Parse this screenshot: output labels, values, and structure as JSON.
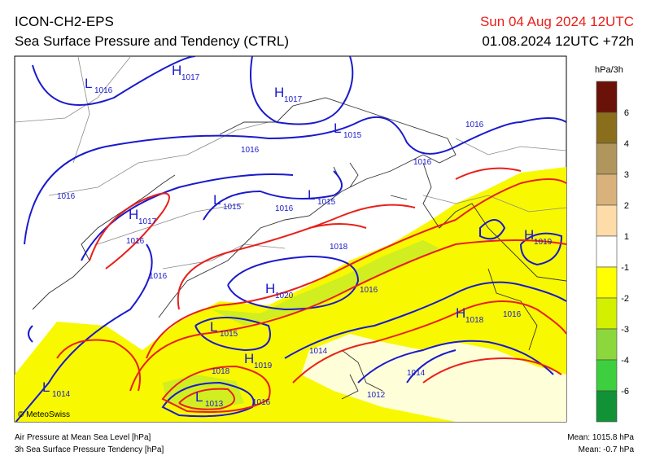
{
  "header": {
    "model": "ICON-CH2-EPS",
    "product": "Sea Surface Pressure and Tendency (CTRL)",
    "valid_time": "Sun 04 Aug 2024 12UTC",
    "run_time": "01.08.2024 12UTC +72h"
  },
  "legend": {
    "unit": "hPa/3h",
    "labels": [
      "6",
      "4",
      "3",
      "2",
      "1",
      "-1",
      "-2",
      "-3",
      "-4",
      "-6"
    ],
    "colors": [
      "#6b1208",
      "#8a6e1c",
      "#b0965c",
      "#d8b27a",
      "#fddcaa",
      "#ffffff",
      "#ffff00",
      "#d2f000",
      "#8cd83c",
      "#3ecf3e",
      "#129236"
    ]
  },
  "map": {
    "centers": [
      {
        "letter": "L",
        "value": "1016"
      },
      {
        "letter": "H",
        "value": "1017"
      },
      {
        "letter": "H",
        "value": "1017"
      },
      {
        "letter": "L",
        "value": "1015"
      },
      {
        "letter": "L",
        "value": "1015"
      },
      {
        "letter": "L",
        "value": "1015"
      },
      {
        "letter": "H",
        "value": "1017"
      },
      {
        "letter": "H",
        "value": "1019"
      },
      {
        "letter": "H",
        "value": "1020"
      },
      {
        "letter": "H",
        "value": "1018"
      },
      {
        "letter": "L",
        "value": "1015"
      },
      {
        "letter": "H",
        "value": "1019"
      },
      {
        "letter": "L",
        "value": "1013"
      },
      {
        "letter": "L",
        "value": "1014"
      }
    ],
    "isobar_labels": [
      "1016",
      "1016",
      "1016",
      "1016",
      "1016",
      "1016",
      "1016",
      "1018",
      "1016",
      "1016",
      "1014",
      "1018",
      "1016",
      "1014",
      "1012"
    ]
  },
  "footer": {
    "credit": "© MeteoSwiss",
    "line_1": "Air Pressure at Mean Sea Level [hPa]",
    "line_2": "3h Sea Surface Pressure Tendency [hPa]",
    "mean_pressure": "Mean: 1015.8 hPa",
    "mean_tendency": "Mean:  -0.7 hPa"
  }
}
